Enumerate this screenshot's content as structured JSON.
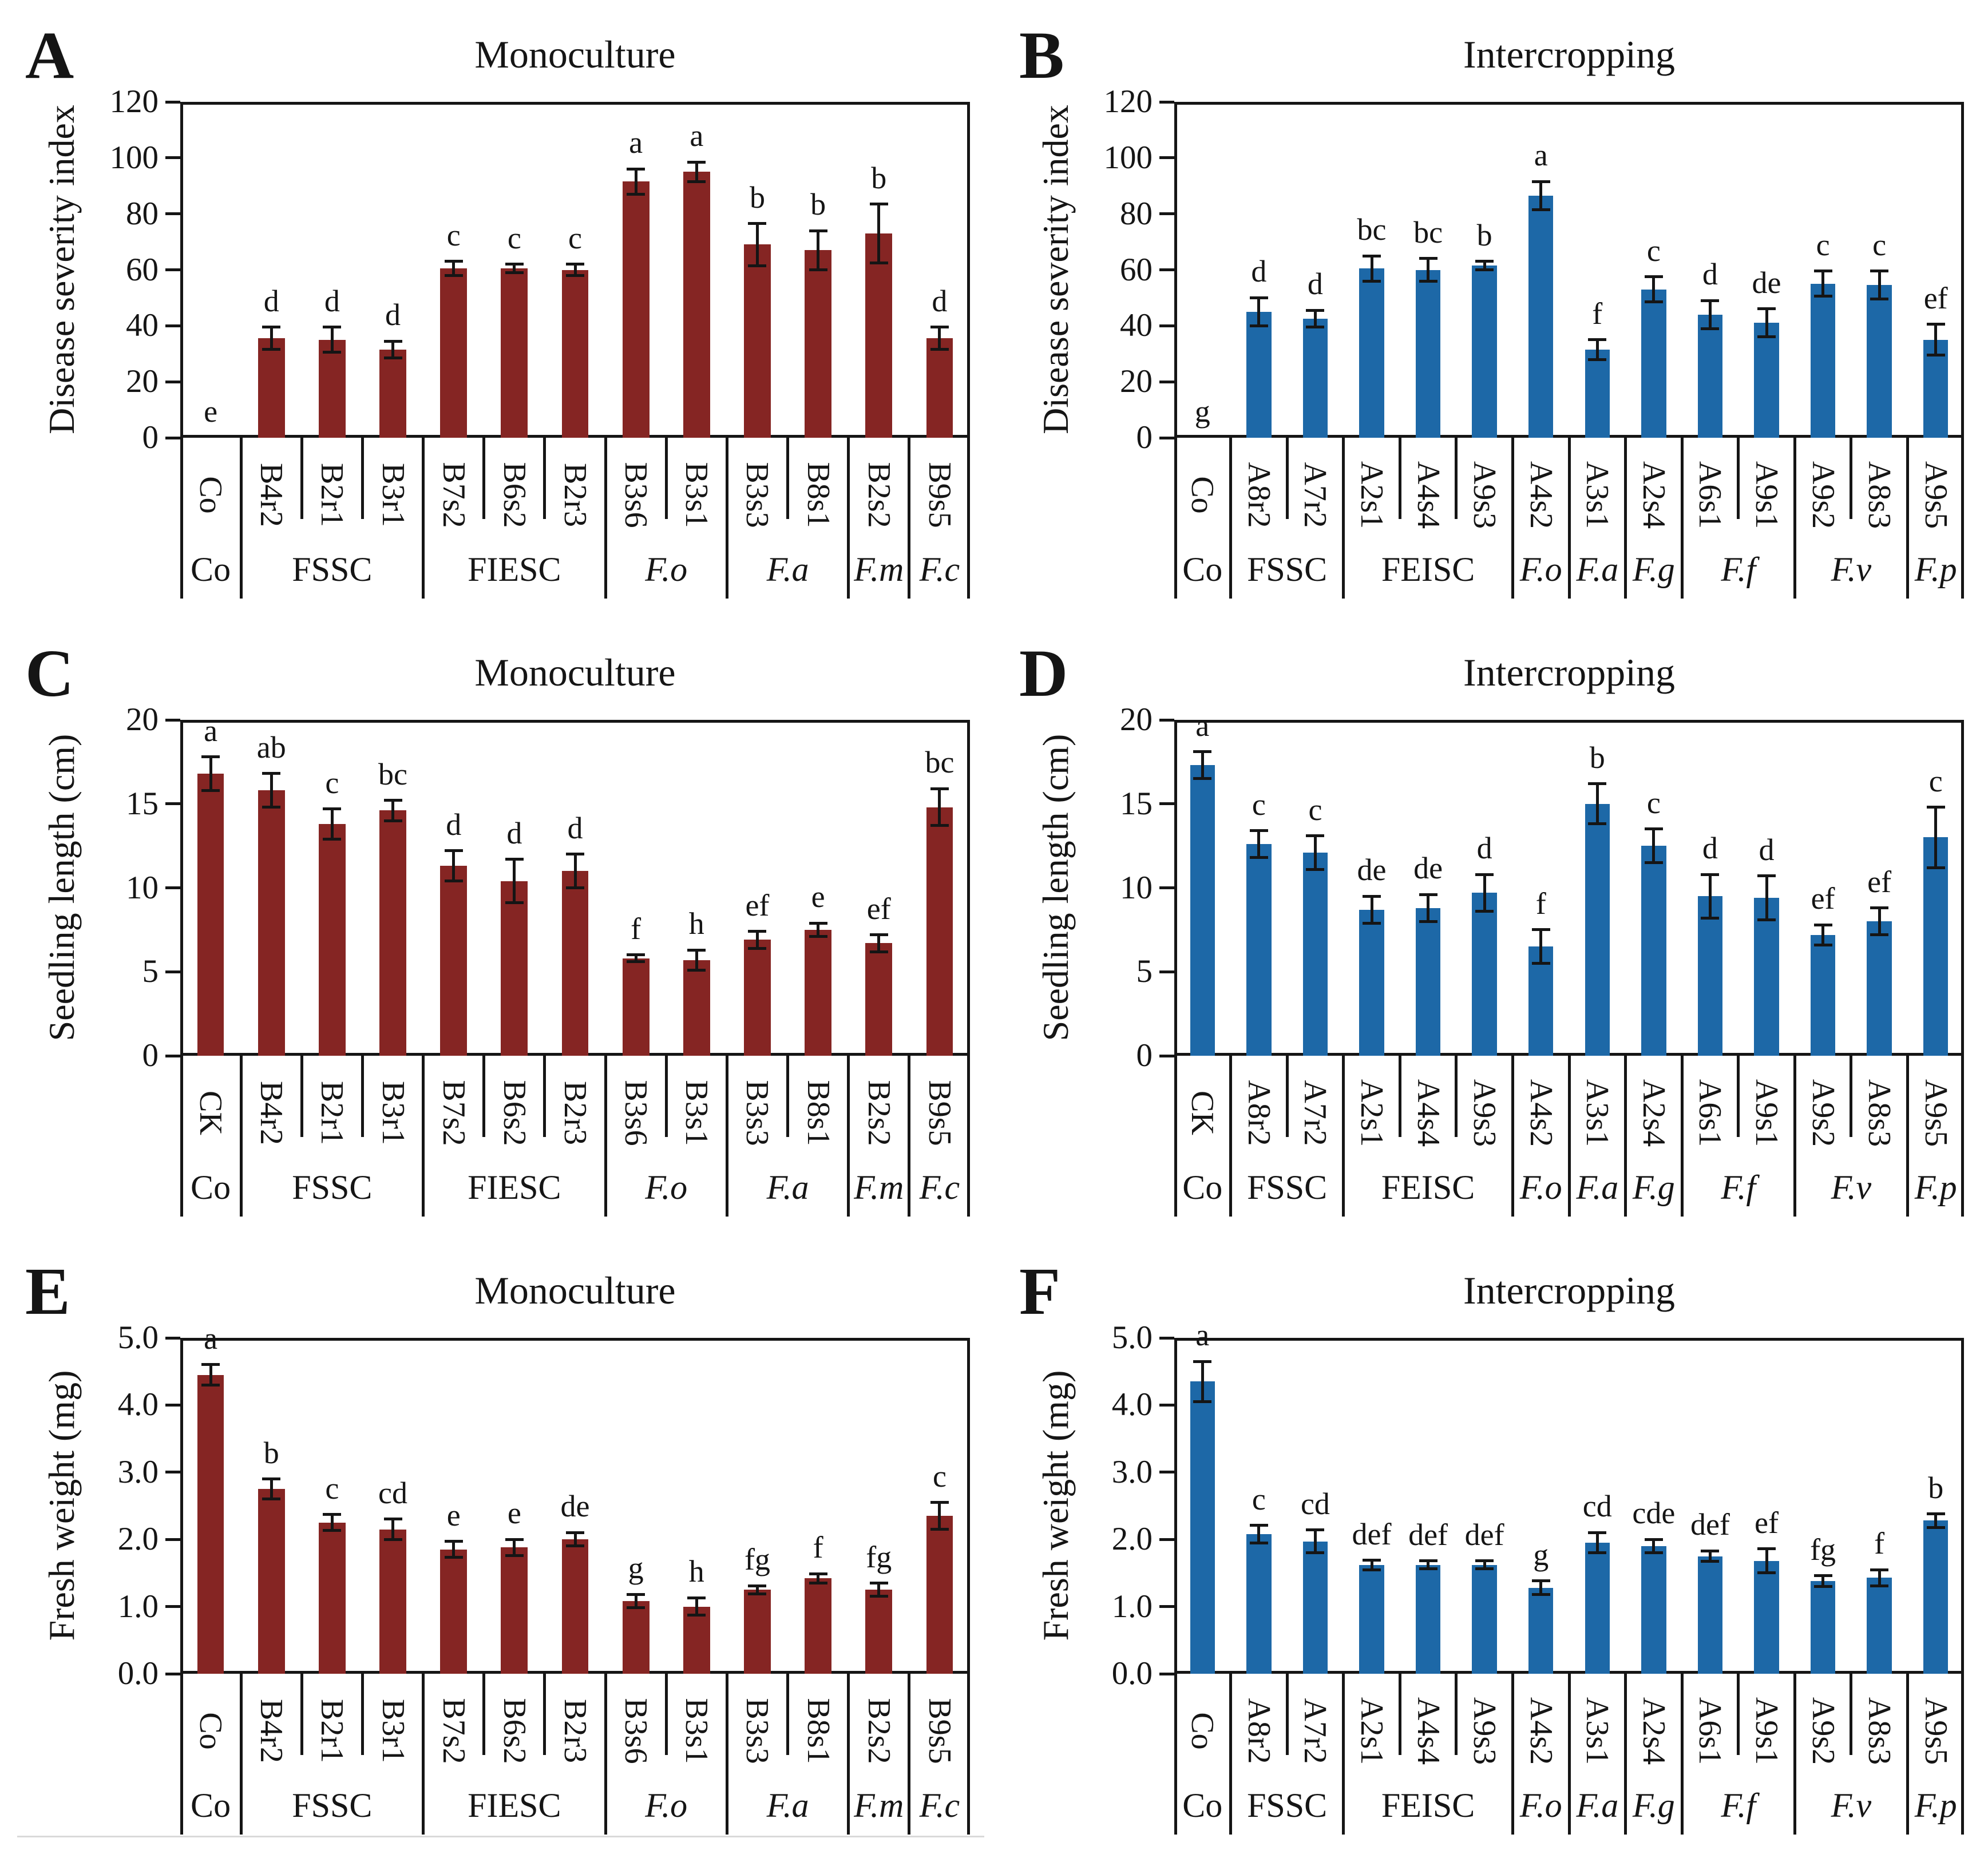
{
  "figure": {
    "background": "#ffffff",
    "axis_color": "#151515",
    "monoculture_bar_color": "#852523",
    "intercropping_bar_color": "#1d68a7",
    "error_bar_color": "#151515"
  },
  "chart_data": [
    {
      "id": "A",
      "type": "bar",
      "title": "Monoculture",
      "ylabel": "Disease severity index",
      "ylim": [
        0,
        120
      ],
      "yticks": [
        "0",
        "20",
        "40",
        "60",
        "80",
        "100",
        "120"
      ],
      "bar_color": "#852523",
      "grid": false,
      "legend": "none",
      "categories": [
        "Co",
        "B4r2",
        "B2r1",
        "B3r1",
        "B7s2",
        "B6s2",
        "B2r3",
        "B3s6",
        "B3s1",
        "B3s3",
        "B8s1",
        "B2s2",
        "B9s5"
      ],
      "values": [
        0,
        35.5,
        35,
        31.5,
        60.5,
        60.5,
        60,
        91.5,
        95,
        69,
        67,
        73,
        35.5
      ],
      "errors": [
        0,
        4,
        4.5,
        3,
        2.5,
        1.5,
        2,
        4.5,
        3.5,
        7.5,
        7,
        10.5,
        4
      ],
      "letters": [
        "e",
        "d",
        "d",
        "d",
        "c",
        "c",
        "c",
        "a",
        "a",
        "b",
        "b",
        "b",
        "d"
      ],
      "groups": [
        {
          "label": "Co",
          "span": 1,
          "italic": false
        },
        {
          "label": "FSSC",
          "span": 3,
          "italic": false
        },
        {
          "label": "FIESC",
          "span": 3,
          "italic": false
        },
        {
          "label": "F.o",
          "span": 2,
          "italic": true
        },
        {
          "label": "F.a",
          "span": 2,
          "italic": true
        },
        {
          "label": "F.m",
          "span": 1,
          "italic": true
        },
        {
          "label": "F.c",
          "span": 1,
          "italic": true
        }
      ]
    },
    {
      "id": "B",
      "type": "bar",
      "title": "Intercropping",
      "ylabel": "Disease severity index",
      "ylim": [
        0,
        120
      ],
      "yticks": [
        "0",
        "20",
        "40",
        "60",
        "80",
        "100",
        "120"
      ],
      "bar_color": "#1d68a7",
      "grid": false,
      "legend": "none",
      "categories": [
        "Co",
        "A8r2",
        "A7r2",
        "A2s1",
        "A4s4",
        "A9s3",
        "A4s2",
        "A3s1",
        "A2s4",
        "A6s1",
        "A9s1",
        "A9s2",
        "A8s3",
        "A9s5"
      ],
      "values": [
        0,
        45,
        42.5,
        60.5,
        60,
        61.5,
        86.5,
        31.5,
        53,
        44,
        41,
        55,
        54.5,
        35
      ],
      "errors": [
        0,
        5,
        3,
        4.5,
        4,
        1.5,
        5,
        3.5,
        4.5,
        5,
        5,
        4.5,
        5,
        5.5
      ],
      "letters": [
        "g",
        "d",
        "d",
        "bc",
        "bc",
        "b",
        "a",
        "f",
        "c",
        "d",
        "de",
        "c",
        "c",
        "ef"
      ],
      "groups": [
        {
          "label": "Co",
          "span": 1,
          "italic": false
        },
        {
          "label": "FSSC",
          "span": 2,
          "italic": false
        },
        {
          "label": "FEISC",
          "span": 3,
          "italic": false
        },
        {
          "label": "F.o",
          "span": 1,
          "italic": true
        },
        {
          "label": "F.a",
          "span": 1,
          "italic": true
        },
        {
          "label": "F.g",
          "span": 1,
          "italic": true
        },
        {
          "label": "F.f",
          "span": 2,
          "italic": true
        },
        {
          "label": "F.v",
          "span": 2,
          "italic": true
        },
        {
          "label": "F.p",
          "span": 1,
          "italic": true
        }
      ]
    },
    {
      "id": "C",
      "type": "bar",
      "title": "Monoculture",
      "ylabel": "Seedling length (cm)",
      "ylim": [
        0,
        20
      ],
      "yticks": [
        "0",
        "5",
        "10",
        "15",
        "20"
      ],
      "bar_color": "#852523",
      "grid": false,
      "legend": "none",
      "categories": [
        "CK",
        "B4r2",
        "B2r1",
        "B3r1",
        "B7s2",
        "B6s2",
        "B2r3",
        "B3s6",
        "B3s1",
        "B3s3",
        "B8s1",
        "B2s2",
        "B9s5"
      ],
      "values": [
        16.8,
        15.8,
        13.8,
        14.6,
        11.3,
        10.4,
        11.0,
        5.8,
        5.7,
        6.9,
        7.5,
        6.7,
        14.8
      ],
      "errors": [
        1.0,
        1.0,
        0.9,
        0.6,
        0.9,
        1.3,
        1.0,
        0.2,
        0.6,
        0.5,
        0.4,
        0.5,
        1.1
      ],
      "letters": [
        "a",
        "ab",
        "c",
        "bc",
        "d",
        "d",
        "d",
        "f",
        "h",
        "ef",
        "e",
        "ef",
        "bc"
      ],
      "groups": [
        {
          "label": "Co",
          "span": 1,
          "italic": false
        },
        {
          "label": "FSSC",
          "span": 3,
          "italic": false
        },
        {
          "label": "FIESC",
          "span": 3,
          "italic": false
        },
        {
          "label": "F.o",
          "span": 2,
          "italic": true
        },
        {
          "label": "F.a",
          "span": 2,
          "italic": true
        },
        {
          "label": "F.m",
          "span": 1,
          "italic": true
        },
        {
          "label": "F.c",
          "span": 1,
          "italic": true
        }
      ]
    },
    {
      "id": "D",
      "type": "bar",
      "title": "Intercropping",
      "ylabel": "Seedling length (cm)",
      "ylim": [
        0,
        20
      ],
      "yticks": [
        "0",
        "5",
        "10",
        "15",
        "20"
      ],
      "bar_color": "#1d68a7",
      "grid": false,
      "legend": "none",
      "categories": [
        "CK",
        "A8r2",
        "A7r2",
        "A2s1",
        "A4s4",
        "A9s3",
        "A4s2",
        "A3s1",
        "A2s4",
        "A6s1",
        "A9s1",
        "A9s2",
        "A8s3",
        "A9s5"
      ],
      "values": [
        17.3,
        12.6,
        12.1,
        8.7,
        8.8,
        9.7,
        6.5,
        15.0,
        12.5,
        9.5,
        9.4,
        7.2,
        8.0,
        13.0
      ],
      "errors": [
        0.8,
        0.8,
        1.0,
        0.8,
        0.8,
        1.1,
        1.0,
        1.2,
        1.0,
        1.3,
        1.3,
        0.6,
        0.8,
        1.8
      ],
      "letters": [
        "a",
        "c",
        "c",
        "de",
        "de",
        "d",
        "f",
        "b",
        "c",
        "d",
        "d",
        "ef",
        "ef",
        "c"
      ],
      "groups": [
        {
          "label": "Co",
          "span": 1,
          "italic": false
        },
        {
          "label": "FSSC",
          "span": 2,
          "italic": false
        },
        {
          "label": "FEISC",
          "span": 3,
          "italic": false
        },
        {
          "label": "F.o",
          "span": 1,
          "italic": true
        },
        {
          "label": "F.a",
          "span": 1,
          "italic": true
        },
        {
          "label": "F.g",
          "span": 1,
          "italic": true
        },
        {
          "label": "F.f",
          "span": 2,
          "italic": true
        },
        {
          "label": "F.v",
          "span": 2,
          "italic": true
        },
        {
          "label": "F.p",
          "span": 1,
          "italic": true
        }
      ]
    },
    {
      "id": "E",
      "type": "bar",
      "title": "Monoculture",
      "ylabel": "Fresh weight (mg)",
      "ylim": [
        0,
        5
      ],
      "yticks": [
        "0.0",
        "1.0",
        "2.0",
        "3.0",
        "4.0",
        "5.0"
      ],
      "bar_color": "#852523",
      "grid": false,
      "legend": "none",
      "categories": [
        "Co",
        "B4r2",
        "B2r1",
        "B3r1",
        "B7s2",
        "B6s2",
        "B2r3",
        "B3s6",
        "B3s1",
        "B3s3",
        "B8s1",
        "B2s2",
        "B9s5"
      ],
      "values": [
        4.45,
        2.75,
        2.25,
        2.15,
        1.85,
        1.88,
        2.0,
        1.08,
        1.0,
        1.25,
        1.42,
        1.25,
        2.35
      ],
      "errors": [
        0.15,
        0.15,
        0.12,
        0.15,
        0.12,
        0.12,
        0.1,
        0.1,
        0.13,
        0.06,
        0.07,
        0.1,
        0.2
      ],
      "letters": [
        "a",
        "b",
        "c",
        "cd",
        "e",
        "e",
        "de",
        "g",
        "h",
        "fg",
        "f",
        "fg",
        "c"
      ],
      "groups": [
        {
          "label": "Co",
          "span": 1,
          "italic": false
        },
        {
          "label": "FSSC",
          "span": 3,
          "italic": false
        },
        {
          "label": "FIESC",
          "span": 3,
          "italic": false
        },
        {
          "label": "F.o",
          "span": 2,
          "italic": true
        },
        {
          "label": "F.a",
          "span": 2,
          "italic": true
        },
        {
          "label": "F.m",
          "span": 1,
          "italic": true
        },
        {
          "label": "F.c",
          "span": 1,
          "italic": true
        }
      ]
    },
    {
      "id": "F",
      "type": "bar",
      "title": "Intercropping",
      "ylabel": "Fresh weight (mg)",
      "ylim": [
        0,
        5
      ],
      "yticks": [
        "0.0",
        "1.0",
        "2.0",
        "3.0",
        "4.0",
        "5.0"
      ],
      "bar_color": "#1d68a7",
      "grid": false,
      "legend": "none",
      "categories": [
        "Co",
        "A8r2",
        "A7r2",
        "A2s1",
        "A4s4",
        "A9s3",
        "A4s2",
        "A3s1",
        "A2s4",
        "A6s1",
        "A9s1",
        "A9s2",
        "A8s3",
        "A9s5"
      ],
      "values": [
        4.35,
        2.08,
        1.97,
        1.62,
        1.62,
        1.62,
        1.28,
        1.95,
        1.9,
        1.75,
        1.68,
        1.38,
        1.43,
        2.28
      ],
      "errors": [
        0.3,
        0.13,
        0.17,
        0.07,
        0.06,
        0.06,
        0.1,
        0.15,
        0.1,
        0.08,
        0.18,
        0.08,
        0.12,
        0.1
      ],
      "letters": [
        "a",
        "c",
        "cd",
        "def",
        "def",
        "def",
        "g",
        "cd",
        "cde",
        "def",
        "ef",
        "fg",
        "f",
        "b"
      ],
      "groups": [
        {
          "label": "Co",
          "span": 1,
          "italic": false
        },
        {
          "label": "FSSC",
          "span": 2,
          "italic": false
        },
        {
          "label": "FEISC",
          "span": 3,
          "italic": false
        },
        {
          "label": "F.o",
          "span": 1,
          "italic": true
        },
        {
          "label": "F.a",
          "span": 1,
          "italic": true
        },
        {
          "label": "F.g",
          "span": 1,
          "italic": true
        },
        {
          "label": "F.f",
          "span": 2,
          "italic": true
        },
        {
          "label": "F.v",
          "span": 2,
          "italic": true
        },
        {
          "label": "F.p",
          "span": 1,
          "italic": true
        }
      ]
    }
  ]
}
